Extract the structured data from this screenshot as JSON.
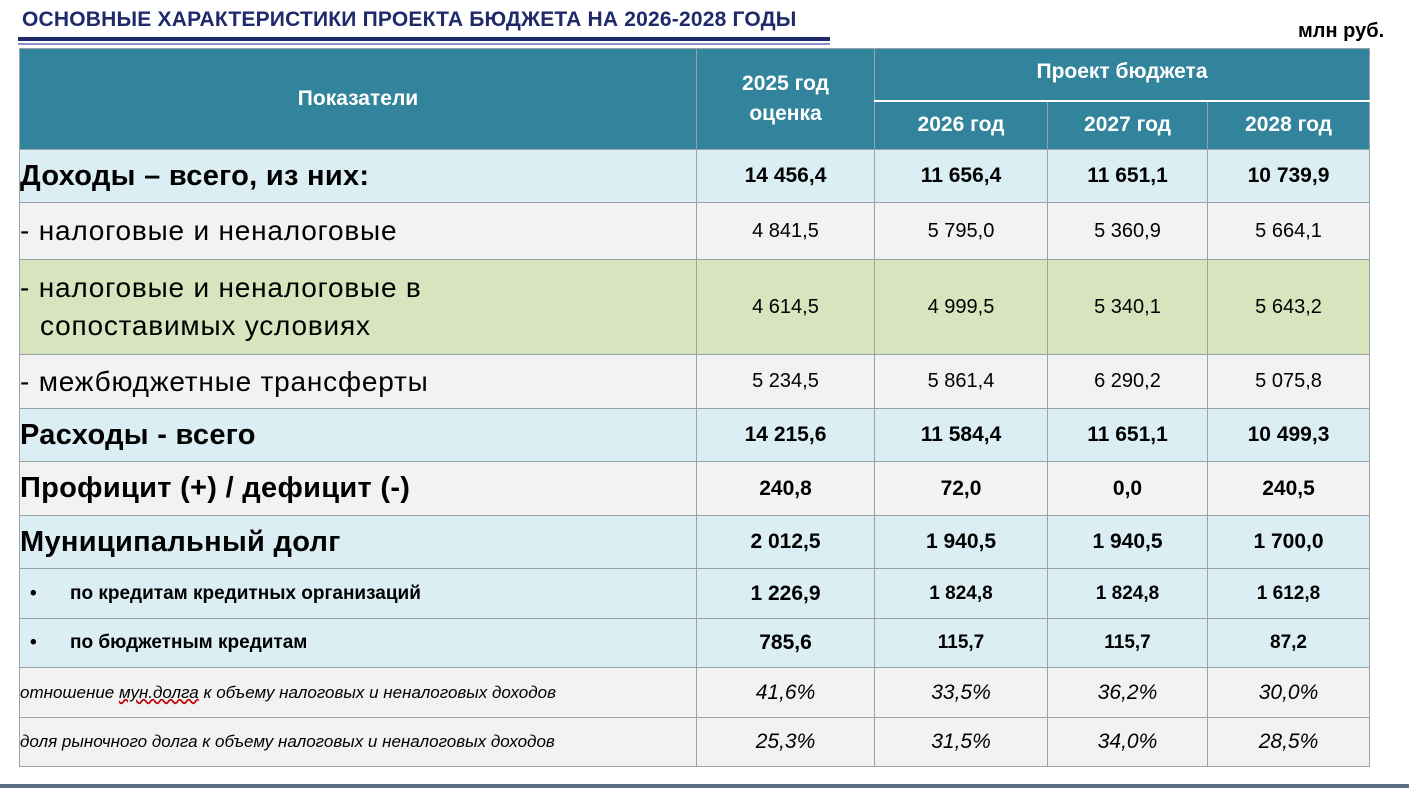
{
  "title": "ОСНОВНЫЕ ХАРАКТЕРИСТИКИ ПРОЕКТА БЮДЖЕТА НА 2026-2028 ГОДЫ",
  "unit": "млн руб.",
  "header": {
    "indicators": "Показатели",
    "est_line1": "2025 год",
    "est_line2": "оценка",
    "project": "Проект бюджета",
    "years": [
      "2026 год",
      "2027 год",
      "2028 год"
    ]
  },
  "rows": [
    {
      "label": "Доходы – всего, из них:",
      "values": [
        "14 456,4",
        "11 656,4",
        "11 651,1",
        "10 739,9"
      ]
    },
    {
      "label": "- налоговые и неналоговые",
      "values": [
        "4 841,5",
        "5 795,0",
        "5 360,9",
        "5 664,1"
      ]
    },
    {
      "label_line1": "- налоговые и неналоговые в",
      "label_line2": "сопоставимых условиях",
      "values": [
        "4 614,5",
        "4 999,5",
        "5 340,1",
        "5 643,2"
      ]
    },
    {
      "label": "- межбюджетные трансферты",
      "values": [
        "5 234,5",
        "5 861,4",
        "6 290,2",
        "5 075,8"
      ]
    },
    {
      "label": "Расходы - всего",
      "values": [
        "14 215,6",
        "11 584,4",
        "11 651,1",
        "10 499,3"
      ]
    },
    {
      "label": "Профицит (+) / дефицит (-)",
      "values": [
        "240,8",
        "72,0",
        "0,0",
        "240,5"
      ]
    },
    {
      "label": "Муниципальный долг",
      "values": [
        "2 012,5",
        "1 940,5",
        "1 940,5",
        "1 700,0"
      ]
    },
    {
      "bullet": "•",
      "label": "по кредитам кредитных организаций",
      "values": [
        "1 226,9",
        "1 824,8",
        "1 824,8",
        "1 612,8"
      ]
    },
    {
      "bullet": "•",
      "label": "по бюджетным кредитам",
      "values": [
        "785,6",
        "115,7",
        "115,7",
        "87,2"
      ]
    },
    {
      "label_a": "отношение ",
      "label_u": "мун.долга",
      "label_b": " к объему налоговых и неналоговых доходов",
      "values": [
        "41,6%",
        "33,5%",
        "36,2%",
        "30,0%"
      ]
    },
    {
      "label": "доля рыночного долга к объему налоговых и неналоговых доходов",
      "values": [
        "25,3%",
        "31,5%",
        "34,0%",
        "28,5%"
      ]
    }
  ]
}
